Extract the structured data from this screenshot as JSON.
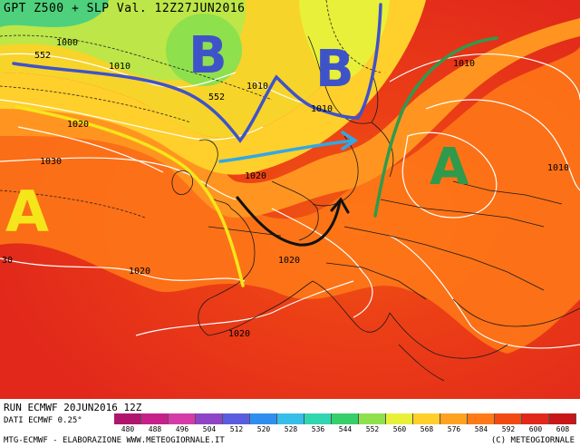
{
  "header": {
    "title": "GPT Z500 + SLP Val. 12Z27JUN2016"
  },
  "footer": {
    "run": "RUN ECMWF 20JUN2016 12Z",
    "dati": "DATI ECMWF 0.25°",
    "credit": "MTG-ECMWF - ELABORAZIONE WWW.METEOGIORNALE.IT",
    "copyright": "(C) METEOGIORNALE"
  },
  "legend": {
    "values": [
      "480",
      "488",
      "496",
      "504",
      "512",
      "520",
      "528",
      "536",
      "544",
      "552",
      "560",
      "568",
      "576",
      "584",
      "592",
      "600",
      "608"
    ],
    "colors": [
      "#b0156e",
      "#c8208a",
      "#d53aa8",
      "#8f43c7",
      "#5b5de0",
      "#2f8ef0",
      "#35bfe8",
      "#2fd6b0",
      "#36cf6a",
      "#8ee04d",
      "#e8f03a",
      "#ffcf2b",
      "#ffa21f",
      "#ff7a17",
      "#f04a12",
      "#e1281b",
      "#c71718"
    ]
  },
  "map": {
    "pressure_labels": [
      "1000",
      "552",
      "1010",
      "552",
      "1010",
      "1020",
      "1010",
      "1030",
      "1020",
      "1010",
      "1020",
      "1010",
      "1020",
      "1020",
      "30"
    ],
    "letters": [
      {
        "text": "B",
        "color": "#3f53c8"
      },
      {
        "text": "B",
        "color": "#3f53c8"
      },
      {
        "text": "A",
        "color": "#f4e61a"
      },
      {
        "text": "A",
        "color": "#2f9a4c"
      }
    ]
  }
}
